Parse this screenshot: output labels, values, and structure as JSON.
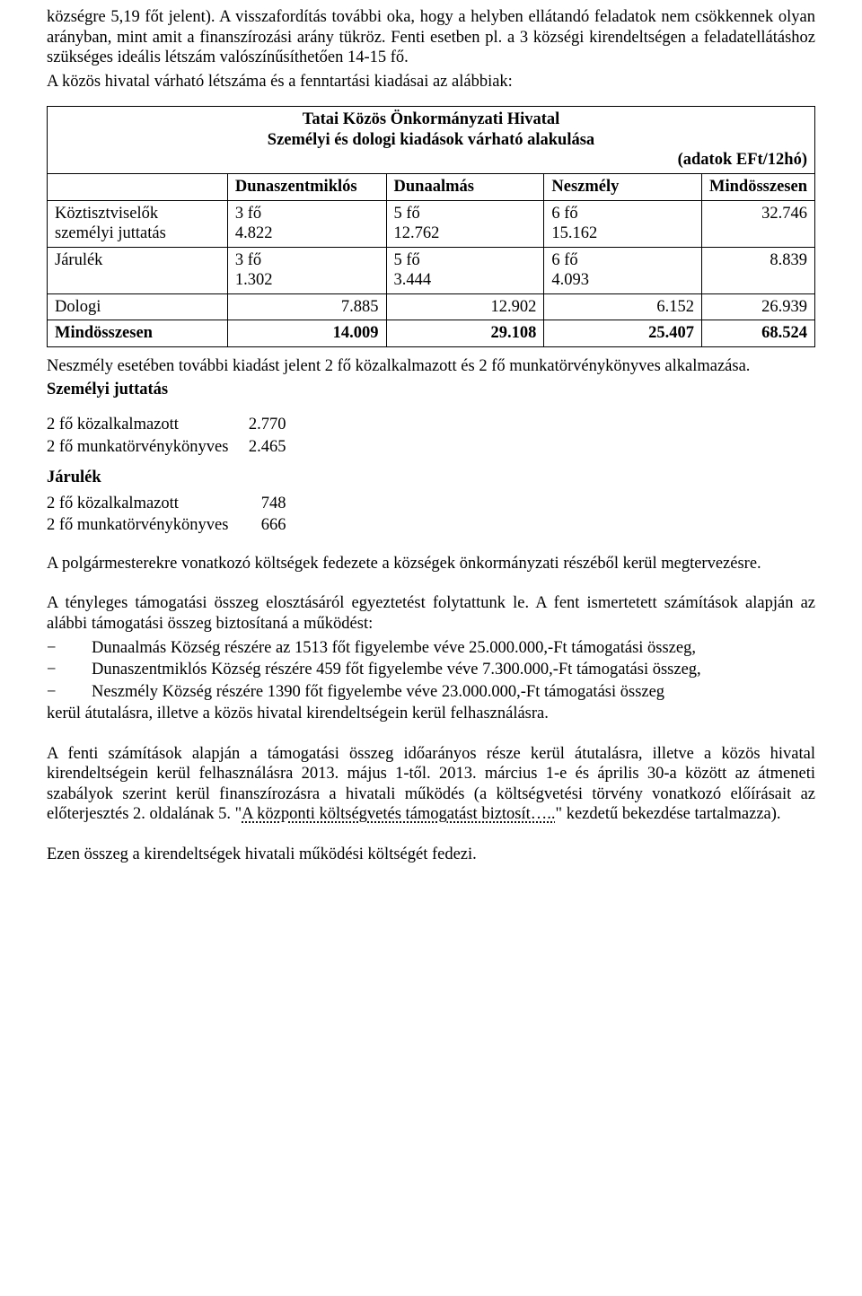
{
  "para1": "községre 5,19 főt jelent). A visszafordítás további oka, hogy a helyben ellátandó feladatok nem csökkennek olyan arányban, mint amit a finanszírozási arány tükröz. Fenti esetben pl. a 3 községi kirendeltségen a feladatellátáshoz szükséges ideális létszám valószínűsíthetően 14-15 fő.",
  "para2": "A közös hivatal várható létszáma és a fenntartási kiadásai az alábbiak:",
  "table_title_line1": "Tatai Közös Önkormányzati Hivatal",
  "table_title_line2": "Személyi és dologi kiadások várható alakulása",
  "table_unit": "(adatok EFt/12hó)",
  "headers": {
    "col0": "",
    "col1": "Dunaszentmiklós",
    "col2": "Dunaalmás",
    "col3": "Neszmély",
    "col4": "Mindösszesen"
  },
  "rows": {
    "r1": {
      "label_line1": "Köztisztviselők",
      "label_line2": "személyi juttatás",
      "c1_l1": "3 fő",
      "c1_l2": "4.822",
      "c2_l1": "5 fő",
      "c2_l2": "12.762",
      "c3_l1": "6 fő",
      "c3_l2": "15.162",
      "c4": "32.746"
    },
    "r2": {
      "label": "Járulék",
      "c1_l1": "3 fő",
      "c1_l2": " 1.302",
      "c2_l1": "5 fő",
      "c2_l2": "3.444",
      "c3_l1": "6 fő",
      "c3_l2": "4.093",
      "c4": "8.839"
    },
    "r3": {
      "label": "Dologi",
      "c1": "7.885",
      "c2": "12.902",
      "c3": "6.152",
      "c4": "26.939"
    },
    "r4": {
      "label": "Mindösszesen",
      "c1": "14.009",
      "c2": "29.108",
      "c3": "25.407",
      "c4": "68.524"
    }
  },
  "para3": "Neszmély esetében további kiadást jelent 2 fő közalkalmazott és 2 fő munkatörvénykönyves alkalmazása.",
  "section_szemelyi": "Személyi juttatás",
  "kv1": {
    "k": "2 fő közalkalmazott",
    "v": "2.770"
  },
  "kv2": {
    "k": "2 fő munkatörvénykönyves",
    "v": "2.465"
  },
  "section_jarulek": "Járulék",
  "kv3": {
    "k": "2 fő közalkalmazott",
    "v": "748"
  },
  "kv4": {
    "k": "2 fő munkatörvénykönyves",
    "v": "666"
  },
  "para4": "A polgármesterekre vonatkozó költségek fedezete a községek önkormányzati részéből kerül megtervezésre.",
  "para5": "A tényleges támogatási összeg elosztásáról egyeztetést folytattunk le. A fent ismertetett számítások alapján az alábbi támogatási összeg biztosítaná a működést:",
  "b1": "Dunaalmás Község részére az 1513 főt figyelembe véve 25.000.000,-Ft támogatási összeg,",
  "b2": "Dunaszentmiklós Község részére 459 főt figyelembe véve 7.300.000,-Ft támogatási összeg,",
  "b3": "Neszmély Község részére 1390 főt figyelembe véve 23.000.000,-Ft támogatási összeg",
  "para6_after_bullets": "kerül átutalásra, illetve a közös hivatal kirendeltségein kerül felhasználásra.",
  "para7_a": "A fenti számítások alapján a támogatási összeg időarányos része kerül átutalásra, illetve a közös hivatal kirendeltségein kerül felhasználásra 2013. május 1-től. 2013. március 1-e és április 30-a között az átmeneti szabályok szerint kerül finanszírozásra a hivatali működés (a költségvetési törvény vonatkozó előírásait az előterjesztés 2. oldalának 5. \"",
  "para7_underline": "A központi költségvetés támogatást biztosít…..",
  "para7_b": "\" kezdetű bekezdése tartalmazza).",
  "para8": "Ezen összeg a kirendeltségek hivatali működési költségét fedezi."
}
